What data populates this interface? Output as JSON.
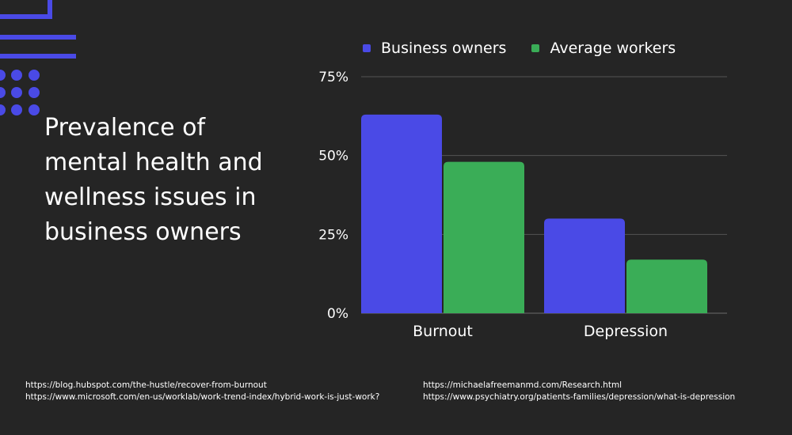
{
  "title": "Prevalence of mental health and wellness issues in business owners",
  "colors": {
    "background": "#252525",
    "accent": "#4a4ae6",
    "business_owners": "#4a4ae6",
    "average_workers": "#3aad57",
    "grid": "#555555"
  },
  "chart_data": {
    "type": "bar",
    "categories": [
      "Burnout",
      "Depression"
    ],
    "series": [
      {
        "name": "Business owners",
        "values": [
          63,
          30
        ]
      },
      {
        "name": "Average workers",
        "values": [
          48,
          17
        ]
      }
    ],
    "y_ticks": [
      "0%",
      "25%",
      "50%",
      "75%"
    ],
    "y_tick_values": [
      0,
      25,
      50,
      75
    ],
    "ylim": [
      0,
      75
    ],
    "grid": true,
    "legend": "top"
  },
  "sources": {
    "left": [
      "https://blog.hubspot.com/the-hustle/recover-from-burnout",
      "https://www.microsoft.com/en-us/worklab/work-trend-index/hybrid-work-is-just-work?"
    ],
    "right": [
      "https://michaelafreemanmd.com/Research.html",
      "https://www.psychiatry.org/patients-families/depression/what-is-depression"
    ]
  }
}
